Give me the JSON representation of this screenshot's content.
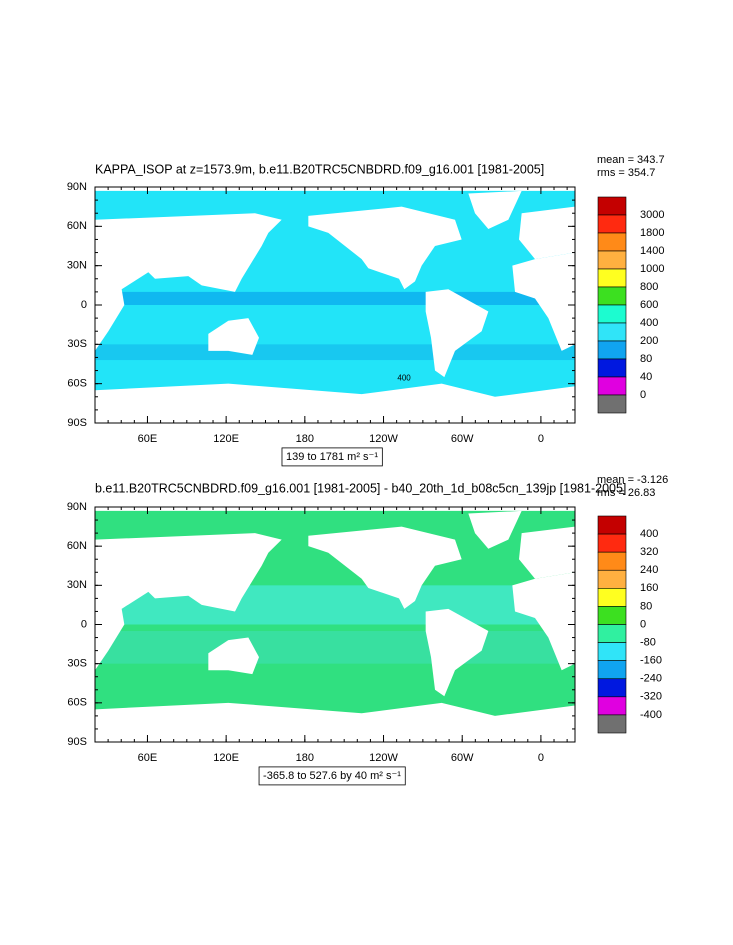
{
  "panels": [
    {
      "title": "KAPPA_ISOP at z=1573.9m, b.e11.B20TRC5CNBDRD.f09_g16.001 [1981-2005]",
      "mean": "mean = 343.7",
      "rms": "rms = 354.7",
      "lat_labels": [
        "90N",
        "60N",
        "30N",
        "0",
        "30S",
        "60S",
        "90S"
      ],
      "lon_labels": [
        "60E",
        "120E",
        "180",
        "120W",
        "60W",
        "0"
      ],
      "colorbar_labels": [
        "3000",
        "1800",
        "1400",
        "1000",
        "800",
        "600",
        "400",
        "200",
        "80",
        "40",
        "0"
      ],
      "colorbar_colors": [
        "#c40000",
        "#ff2a10",
        "#ff8a18",
        "#ffb040",
        "#ffff20",
        "#3ce020",
        "#1cfcd0",
        "#30e4f8",
        "#10a4f0",
        "#0018e0",
        "#e000e0",
        "#707070"
      ],
      "contour_label": "400",
      "caption": "139 to 1781 m² s⁻¹"
    },
    {
      "title": "b.e11.B20TRC5CNBDRD.f09_g16.001 [1981-2005] - b40_20th_1d_b08c5cn_139jp [1981-2005]",
      "mean": "mean = -3.126",
      "rms": "rms = 26.83",
      "lat_labels": [
        "90N",
        "60N",
        "30N",
        "0",
        "30S",
        "60S",
        "90S"
      ],
      "lon_labels": [
        "60E",
        "120E",
        "180",
        "120W",
        "60W",
        "0"
      ],
      "colorbar_labels": [
        "400",
        "320",
        "240",
        "160",
        "80",
        "0",
        "-80",
        "-160",
        "-240",
        "-320",
        "-400"
      ],
      "colorbar_colors": [
        "#c40000",
        "#ff2a10",
        "#ff8a18",
        "#ffb040",
        "#ffff20",
        "#3ce020",
        "#30f0a0",
        "#30e4f8",
        "#10a4f0",
        "#0018e0",
        "#e000e0",
        "#707070"
      ],
      "caption": "-365.8 to 527.6 by 40 m² s⁻¹"
    }
  ]
}
